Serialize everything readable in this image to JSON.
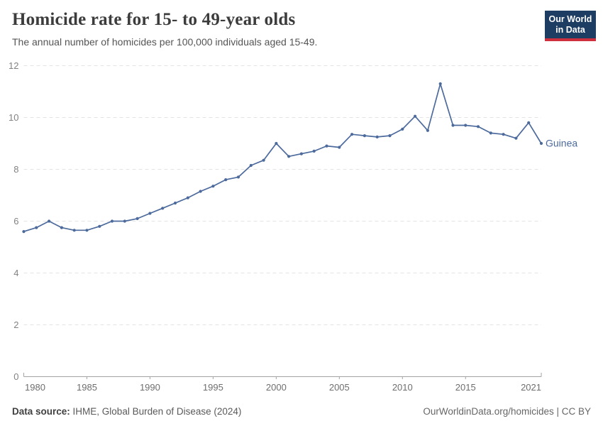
{
  "header": {
    "title": "Homicide rate for 15- to 49-year olds",
    "subtitle": "The annual number of homicides per 100,000 individuals aged 15-49.",
    "logo": {
      "line1": "Our World",
      "line2": "in Data",
      "bg_color": "#1d3d63",
      "accent_color": "#cf303e"
    }
  },
  "chart_data": {
    "type": "line",
    "title": "Homicide rate for 15- to 49-year olds",
    "entity": "Guinea",
    "line_color": "#4C6A9C",
    "x": [
      1980,
      1981,
      1982,
      1983,
      1984,
      1985,
      1986,
      1987,
      1988,
      1989,
      1990,
      1991,
      1992,
      1993,
      1994,
      1995,
      1996,
      1997,
      1998,
      1999,
      2000,
      2001,
      2002,
      2003,
      2004,
      2005,
      2006,
      2007,
      2008,
      2009,
      2010,
      2011,
      2012,
      2013,
      2014,
      2015,
      2016,
      2017,
      2018,
      2019,
      2020,
      2021
    ],
    "values": [
      5.6,
      5.75,
      6.0,
      5.75,
      5.65,
      5.65,
      5.8,
      6.0,
      6.0,
      6.1,
      6.3,
      6.5,
      6.7,
      6.9,
      7.15,
      7.35,
      7.6,
      7.7,
      8.15,
      8.35,
      9.0,
      8.5,
      8.6,
      8.7,
      8.9,
      8.85,
      9.35,
      9.3,
      9.25,
      9.3,
      9.55,
      10.05,
      9.5,
      11.3,
      9.7,
      9.7,
      9.65,
      9.4,
      9.35,
      9.2,
      9.8,
      9.0
    ],
    "xlabel": "",
    "ylabel": "",
    "ylim": [
      0,
      12
    ],
    "yticks": [
      0,
      2,
      4,
      6,
      8,
      10,
      12
    ],
    "xticks": [
      1980,
      1985,
      1990,
      1995,
      2000,
      2005,
      2010,
      2015,
      2021
    ],
    "grid": "horizontal-dashed",
    "legend_position": "end-of-line-label"
  },
  "footer": {
    "source_label": "Data source:",
    "source_text": "IHME, Global Burden of Disease (2024)",
    "link_text": "OurWorldinData.org/homicides | CC BY"
  }
}
